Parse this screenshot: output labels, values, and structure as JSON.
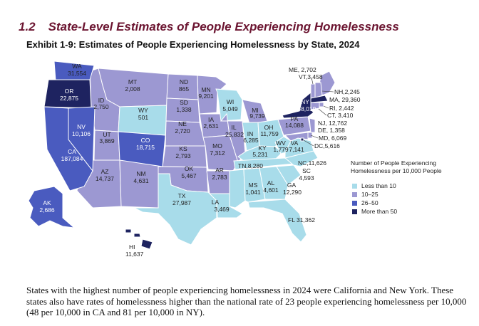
{
  "section": {
    "number": "1.2",
    "title": "State-Level Estimates of People Experiencing Homelessness"
  },
  "exhibit_title": "Exhibit 1-9: Estimates of People Experiencing Homelessness by State, 2024",
  "colors": {
    "less_than_10": "#a8dcea",
    "10_25": "#9c98d2",
    "26_50": "#4a5bbf",
    "more_than_50": "#1e2360"
  },
  "legend": {
    "title_line1": "Number of People Experiencing",
    "title_line2": "Homelessness per 10,000 People",
    "items": [
      {
        "label": "Less than 10",
        "color": "#a8dcea"
      },
      {
        "label": "10–25",
        "color": "#9c98d2"
      },
      {
        "label": "26–50",
        "color": "#4a5bbf"
      },
      {
        "label": "More than 50",
        "color": "#1e2360"
      }
    ]
  },
  "states": {
    "WA": {
      "name": "WA",
      "value": "31,554"
    },
    "OR": {
      "name": "OR",
      "value": "22,875"
    },
    "CA": {
      "name": "CA",
      "value": "187,084"
    },
    "NV": {
      "name": "NV",
      "value": "10,106"
    },
    "ID": {
      "name": "ID",
      "value": "2,750"
    },
    "MT": {
      "name": "MT",
      "value": "2,008"
    },
    "WY": {
      "name": "WY",
      "value": "501"
    },
    "UT": {
      "name": "UT",
      "value": "3,869"
    },
    "AZ": {
      "name": "AZ",
      "value": "14,737"
    },
    "CO": {
      "name": "CO",
      "value": "18,715"
    },
    "NM": {
      "name": "NM",
      "value": "4,631"
    },
    "ND": {
      "name": "ND",
      "value": "865"
    },
    "SD": {
      "name": "SD",
      "value": "1,338"
    },
    "NE": {
      "name": "NE",
      "value": "2,720"
    },
    "KS": {
      "name": "KS",
      "value": "2,793"
    },
    "OK": {
      "name": "OK",
      "value": "5,467"
    },
    "TX": {
      "name": "TX",
      "value": "27,987"
    },
    "MN": {
      "name": "MN",
      "value": "9,201"
    },
    "IA": {
      "name": "IA",
      "value": "2,631"
    },
    "MO": {
      "name": "MO",
      "value": "7,312"
    },
    "AR": {
      "name": "AR",
      "value": "2,783"
    },
    "LA": {
      "name": "LA",
      "value": "3,469"
    },
    "WI": {
      "name": "WI",
      "value": "5,049"
    },
    "IL": {
      "name": "IL",
      "value": "25,832"
    },
    "MI": {
      "name": "MI",
      "value": "9,739"
    },
    "IN": {
      "name": "IN",
      "value": "6,285"
    },
    "OH": {
      "name": "OH",
      "value": "11,759"
    },
    "KY": {
      "name": "KY",
      "value": "5,231"
    },
    "TN": {
      "name": "TN",
      "value": "8,280"
    },
    "MS": {
      "name": "MS",
      "value": "1,041"
    },
    "AL": {
      "name": "AL",
      "value": "4,601"
    },
    "GA": {
      "name": "GA",
      "value": "12,290"
    },
    "FL": {
      "name": "FL",
      "value": "31,362"
    },
    "SC": {
      "name": "SC",
      "value": "4,593"
    },
    "NC": {
      "name": "NC",
      "value": "11,626"
    },
    "VA": {
      "name": "VA",
      "value": "7,141"
    },
    "WV": {
      "name": "WV",
      "value": "1,779"
    },
    "PA": {
      "name": "PA",
      "value": "14,088"
    },
    "NY": {
      "name": "NY",
      "value": "158,019"
    },
    "ME": {
      "name": "ME",
      "value": "2,702"
    },
    "VT": {
      "name": "VT",
      "value": "3,458"
    },
    "NH": {
      "name": "NH",
      "value": "2,245"
    },
    "MA": {
      "name": "MA",
      "value": "29,360"
    },
    "RI": {
      "name": "RI",
      "value": "2,442"
    },
    "CT": {
      "name": "CT",
      "value": "3,410"
    },
    "NJ": {
      "name": "NJ",
      "value": "12,762"
    },
    "DE": {
      "name": "DE",
      "value": "1,358"
    },
    "MD": {
      "name": "MD",
      "value": "6,069"
    },
    "DC": {
      "name": "DC",
      "value": "5,616"
    },
    "AK": {
      "name": "AK",
      "value": "2,686"
    },
    "HI": {
      "name": "HI",
      "value": "11,637"
    }
  },
  "inline_labels": {
    "ME": "ME, 2,702",
    "VT": "VT,3,458",
    "NH": "NH,2,245",
    "MA": "MA, 29,360",
    "RI": "RI, 2,442",
    "CT": "CT, 3,410",
    "NJ": "NJ, 12,762",
    "DE": "DE, 1,358",
    "MD": "MD, 6,069",
    "DC": "DC,5,616",
    "NC": "NC,11,626",
    "TN": "TN,8,280",
    "FL": "FL 31,362",
    "HI": "HI"
  },
  "paragraph": "States with the highest number of people experiencing homelessness in 2024 were California and New York. These states also have rates of homelessness higher than the national rate of 23 people experiencing homelessness per 10,000 (48 per 10,000 in CA and 81 per 10,000 in NY)."
}
